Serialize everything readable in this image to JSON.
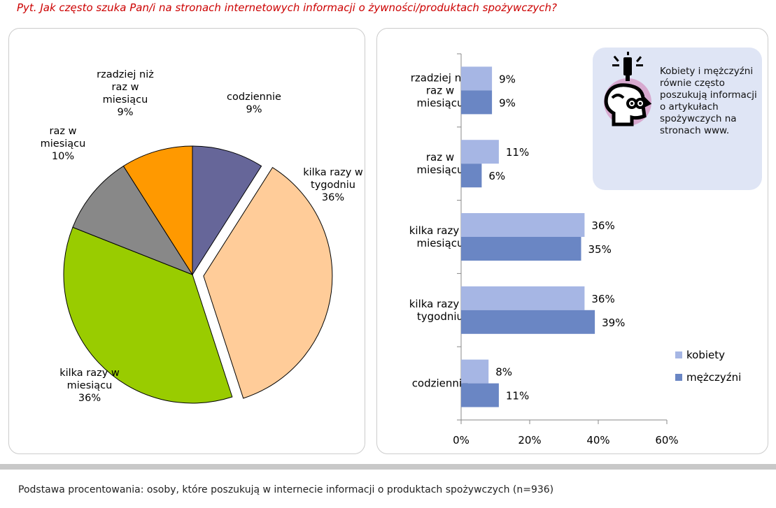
{
  "question": "Pyt. Jak często szuka Pan/i na stronach internetowych informacji o żywności/produktach spożywczych?",
  "footer": "Podstawa procentowania: osoby, które poszukują w internecie informacji o produktach spożywczych (n=936)",
  "note": "Kobiety i mężczyźni równie często poszukują informacji o artykułach spożywczych na stronach www.",
  "note_icon": "lightbulb-head-icon",
  "chart_data": [
    {
      "type": "pie",
      "slices": [
        {
          "label": [
            "codziennie"
          ],
          "value": 9,
          "value_label": "9%",
          "color": "#666699",
          "exploded": false
        },
        {
          "label": [
            "kilka razy w",
            "tygodniu"
          ],
          "value": 36,
          "value_label": "36%",
          "color": "#ffcc99",
          "exploded": true
        },
        {
          "label": [
            "kilka razy w",
            "miesiącu"
          ],
          "value": 36,
          "value_label": "36%",
          "color": "#99cc00",
          "exploded": false
        },
        {
          "label": [
            "raz w",
            "miesiącu"
          ],
          "value": 10,
          "value_label": "10%",
          "color": "#888888",
          "exploded": false
        },
        {
          "label": [
            "rzadziej niż",
            "raz w",
            "miesiącu"
          ],
          "value": 9,
          "value_label": "9%",
          "color": "#ff9900",
          "exploded": false
        }
      ]
    },
    {
      "type": "bar",
      "orientation": "horizontal",
      "categories": [
        [
          "rzadziej niż",
          "raz w",
          "miesiącu"
        ],
        [
          "raz w",
          "miesiącu"
        ],
        [
          "kilka razy w",
          "miesiącu"
        ],
        [
          "kilka razy w",
          "tygodniu"
        ],
        [
          "codziennie"
        ]
      ],
      "series": [
        {
          "name": "kobiety",
          "values": [
            9,
            11,
            36,
            36,
            8
          ],
          "value_labels": [
            "9%",
            "11%",
            "36%",
            "36%",
            "8%"
          ],
          "color": "#a6b6e4"
        },
        {
          "name": "mężczyźni",
          "values": [
            9,
            6,
            35,
            39,
            11
          ],
          "value_labels": [
            "9%",
            "6%",
            "35%",
            "39%",
            "11%"
          ],
          "color": "#6a86c4"
        }
      ],
      "xlim": [
        0,
        60
      ],
      "xticks": [
        0,
        20,
        40,
        60
      ],
      "xtick_labels": [
        "0%",
        "20%",
        "40%",
        "60%"
      ],
      "legend_position": "bottom-right"
    }
  ]
}
